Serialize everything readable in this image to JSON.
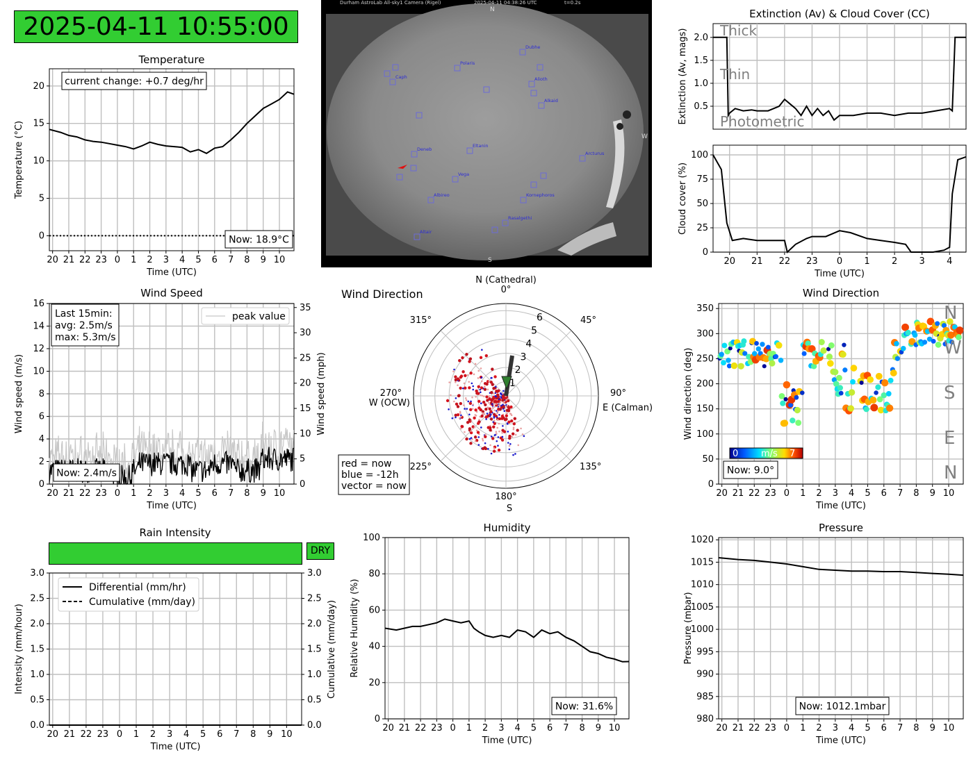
{
  "clock": "2025-04-11 10:55:00",
  "colors": {
    "line": "#000000",
    "grid": "#bfbfbf",
    "green": "#32cd32",
    "peak": "#c8c8c8",
    "label_gray": "#808080"
  },
  "camera": {
    "header": {
      "title": "Durham AstroLab All-sky1 Camera (Rigel)",
      "time": "2025-04-11 04:38:26 UTC",
      "exposure": "t=0.2s"
    },
    "compass": {
      "n": "N",
      "s": "S",
      "w": "W"
    },
    "stars": [
      "Dubhe",
      "Polaris",
      "Caph",
      "Alioth",
      "Alkaid",
      "Deneb",
      "Eltanin",
      "Arcturus",
      "Vega",
      "Albireo",
      "Kornephoros",
      "Rasalgethi",
      "Altair"
    ]
  },
  "temperature": {
    "title": "Temperature",
    "xlabel": "Time (UTC)",
    "ylabel": "Temperature (°C)",
    "change": "current change: +0.7 deg/hr",
    "now": "Now: 18.9°C",
    "chart_data": {
      "type": "line",
      "ylim": [
        -2,
        22.3
      ],
      "yticks": [
        0,
        5,
        10,
        15,
        20
      ],
      "xticks": [
        "20",
        "21",
        "22",
        "23",
        "0",
        "1",
        "2",
        "3",
        "4",
        "5",
        "6",
        "7",
        "8",
        "9",
        "10"
      ],
      "xrange_hours": [
        -4.2,
        10.9
      ],
      "x": [
        -4.2,
        -3.5,
        -3,
        -2.5,
        -2,
        -1.5,
        -1,
        -0.5,
        0,
        0.5,
        1,
        1.5,
        2,
        2.5,
        3,
        3.5,
        4,
        4.5,
        5,
        5.5,
        6,
        6.5,
        7,
        7.5,
        8,
        8.5,
        9,
        9.5,
        10,
        10.5,
        10.9
      ],
      "y": [
        14.2,
        13.8,
        13.4,
        13.2,
        12.8,
        12.6,
        12.5,
        12.3,
        12.1,
        11.9,
        11.6,
        12,
        12.5,
        12.2,
        12,
        11.9,
        11.8,
        11.2,
        11.5,
        11,
        11.7,
        11.9,
        12.8,
        13.8,
        15,
        16,
        17,
        17.6,
        18.2,
        19.2,
        18.9
      ]
    }
  },
  "extinction": {
    "title": "Extinction (Av) & Cloud Cover (CC)",
    "xlabel": "Time (UTC)",
    "ylabel": "Extinction (Av, mags)",
    "zones": [
      "Thick",
      "Thin",
      "Photometric"
    ],
    "chart_data": {
      "type": "line",
      "ylim": [
        0,
        2.3
      ],
      "yticks": [
        "0.5",
        "1.0",
        "1.5",
        "2.0"
      ],
      "x": [
        -4.6,
        -4.1,
        -4.05,
        -4,
        -3.8,
        -3.5,
        -3.2,
        -3,
        -2.6,
        -2.2,
        -2,
        -1.8,
        -1.6,
        -1.4,
        -1.2,
        -1,
        -0.8,
        -0.6,
        -0.4,
        -0.2,
        0,
        0.5,
        1,
        1.5,
        2,
        2.5,
        3,
        3.5,
        4,
        4.1,
        4.2,
        4.6
      ],
      "y": [
        2,
        2,
        0.3,
        0.35,
        0.45,
        0.4,
        0.42,
        0.4,
        0.4,
        0.5,
        0.65,
        0.55,
        0.45,
        0.3,
        0.5,
        0.3,
        0.45,
        0.3,
        0.4,
        0.2,
        0.3,
        0.3,
        0.35,
        0.35,
        0.3,
        0.35,
        0.35,
        0.4,
        0.45,
        0.4,
        2,
        2
      ]
    }
  },
  "cloud": {
    "xlabel": "Time (UTC)",
    "ylabel": "Cloud cover (%)",
    "chart_data": {
      "type": "line",
      "ylim": [
        0,
        110
      ],
      "yticks": [
        "0",
        "25",
        "50",
        "75",
        "100"
      ],
      "xticks": [
        "20",
        "21",
        "22",
        "23",
        "0",
        "1",
        "2",
        "3",
        "4"
      ],
      "x": [
        -4.6,
        -4.3,
        -4.1,
        -3.9,
        -3.5,
        -3,
        -2.5,
        -2,
        -1.9,
        -1.6,
        -1.2,
        -1,
        -0.5,
        0,
        0.4,
        1,
        1.5,
        2,
        2.4,
        2.6,
        3,
        3.4,
        3.8,
        4,
        4.1,
        4.3,
        4.6
      ],
      "y": [
        100,
        85,
        30,
        12,
        14,
        12,
        12,
        12,
        0,
        8,
        14,
        16,
        16,
        22,
        20,
        14,
        12,
        10,
        8,
        0,
        0,
        0,
        2,
        5,
        60,
        95,
        98
      ]
    }
  },
  "wind_speed": {
    "title": "Wind Speed",
    "xlabel": "Time (UTC)",
    "ylabel": "Wind speed (m/s)",
    "ylabel_right": "Wind speed (mph)",
    "stats": [
      "Last 15min:",
      "avg: 2.5m/s",
      "max: 5.3m/s"
    ],
    "now": "Now: 2.4m/s",
    "legend": "peak value",
    "chart_data": {
      "type": "line",
      "ylim": [
        0,
        16
      ],
      "yticks": [
        0,
        2,
        4,
        6,
        8,
        10,
        12,
        14,
        16
      ],
      "yticks_right": [
        0,
        5,
        10,
        15,
        20,
        25,
        30,
        35
      ],
      "xticks": [
        "20",
        "21",
        "22",
        "23",
        "0",
        "1",
        "2",
        "3",
        "4",
        "5",
        "6",
        "7",
        "8",
        "9",
        "10"
      ]
    }
  },
  "wind_polar": {
    "title": "Wind Direction",
    "labels": {
      "n": "N (Cathedral)",
      "e": "E (Calman)",
      "s": "S",
      "w": "W (OCW)",
      "deg": [
        "0°",
        "45°",
        "90°",
        "135°",
        "180°",
        "225°",
        "270°",
        "315°"
      ]
    },
    "rings": [
      "1",
      "2",
      "3",
      "4",
      "5",
      "6"
    ],
    "legend": [
      "red = now",
      "blue = -12h",
      "vector = now"
    ]
  },
  "wind_dir_ts": {
    "title": "Wind Direction",
    "xlabel": "Time (UTC)",
    "ylabel": "Wind direction (deg)",
    "now": "Now: 9.0°",
    "cbar": {
      "min": "0",
      "unit": "m/s",
      "max": "7"
    },
    "compass": [
      "N",
      "W",
      "S",
      "E",
      "N"
    ],
    "chart_data": {
      "type": "scatter",
      "ylim": [
        0,
        360
      ],
      "yticks": [
        0,
        50,
        100,
        150,
        200,
        250,
        300,
        350
      ],
      "xticks": [
        "20",
        "21",
        "22",
        "23",
        "0",
        "1",
        "2",
        "3",
        "4",
        "5",
        "6",
        "7",
        "8",
        "9",
        "10"
      ]
    }
  },
  "rain": {
    "title": "Rain Intensity",
    "status": "DRY",
    "xlabel": "Time (UTC)",
    "ylabel": "Intensity (mm/hour)",
    "ylabel_right": "Cumulative (mm/day)",
    "legend": [
      "Differential (mm/hr)",
      "Cumulative (mm/day)"
    ],
    "chart_data": {
      "type": "line",
      "ylim": [
        0,
        3
      ],
      "yticks": [
        "0.0",
        "0.5",
        "1.0",
        "1.5",
        "2.0",
        "2.5",
        "3.0"
      ],
      "xticks": [
        "20",
        "21",
        "22",
        "23",
        "0",
        "1",
        "2",
        "3",
        "4",
        "5",
        "6",
        "7",
        "8",
        "9",
        "10"
      ],
      "values": [
        0
      ]
    }
  },
  "humidity": {
    "title": "Humidity",
    "xlabel": "Time (UTC)",
    "ylabel": "Relative Humidity (%)",
    "now": "Now: 31.6%",
    "chart_data": {
      "type": "line",
      "ylim": [
        0,
        100
      ],
      "yticks": [
        0,
        20,
        40,
        60,
        80,
        100
      ],
      "xticks": [
        "20",
        "21",
        "22",
        "23",
        "0",
        "1",
        "2",
        "3",
        "4",
        "5",
        "6",
        "7",
        "8",
        "9",
        "10"
      ],
      "x": [
        -4.2,
        -3.5,
        -3,
        -2.5,
        -2,
        -1.5,
        -1,
        -0.5,
        0,
        0.5,
        1,
        1.3,
        1.6,
        2,
        2.5,
        3,
        3.5,
        4,
        4.5,
        5,
        5.5,
        6,
        6.5,
        7,
        7.5,
        8,
        8.5,
        9,
        9.5,
        10,
        10.5,
        10.9
      ],
      "y": [
        50,
        49,
        50,
        51,
        51,
        52,
        53,
        55,
        54,
        53,
        54,
        50,
        48,
        46,
        45,
        46,
        45,
        49,
        48,
        45,
        49,
        47,
        48,
        45,
        43,
        40,
        37,
        36,
        34,
        33,
        31.5,
        31.6
      ]
    }
  },
  "pressure": {
    "title": "Pressure",
    "xlabel": "Time (UTC)",
    "ylabel": "Pressure (mbar)",
    "now": "Now: 1012.1mbar",
    "chart_data": {
      "type": "line",
      "ylim": [
        980,
        1020.5
      ],
      "yticks": [
        980,
        985,
        990,
        995,
        1000,
        1005,
        1010,
        1015,
        1020
      ],
      "xticks": [
        "20",
        "21",
        "22",
        "23",
        "0",
        "1",
        "2",
        "3",
        "4",
        "5",
        "6",
        "7",
        "8",
        "9",
        "10"
      ],
      "x": [
        -4.2,
        -3,
        -2,
        -1,
        0,
        1,
        2,
        3,
        4,
        5,
        6,
        7,
        8,
        9,
        10,
        10.9
      ],
      "y": [
        1016,
        1015.6,
        1015.4,
        1015,
        1014.6,
        1014,
        1013.4,
        1013.2,
        1013,
        1013,
        1012.9,
        1012.9,
        1012.7,
        1012.5,
        1012.3,
        1012.1
      ]
    }
  }
}
